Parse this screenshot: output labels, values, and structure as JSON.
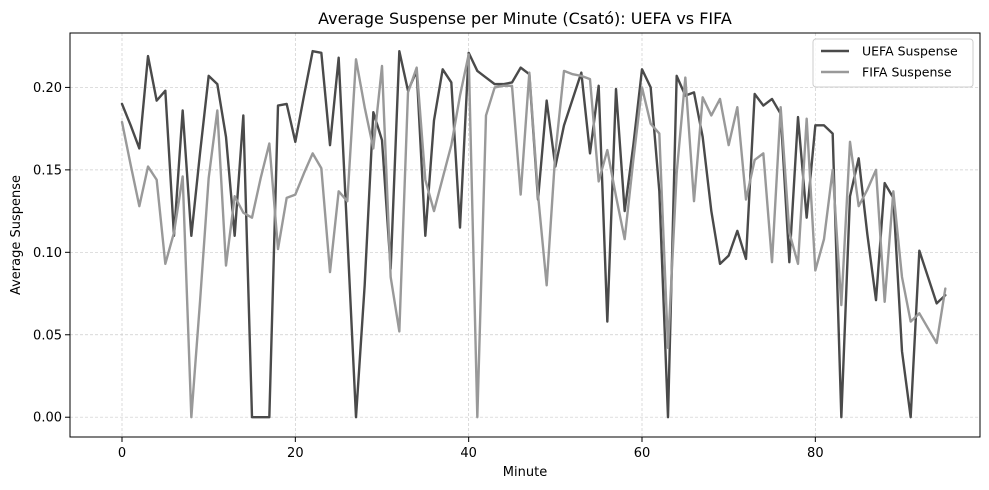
{
  "chart_data": {
    "type": "line",
    "title": "Average Suspense per Minute (Csató): UEFA vs FIFA",
    "xlabel": "Minute",
    "ylabel": "Average Suspense",
    "xlim": [
      -6,
      99
    ],
    "ylim": [
      -0.012,
      0.233
    ],
    "xticks": [
      0,
      20,
      40,
      60,
      80
    ],
    "yticks": [
      0.0,
      0.05,
      0.1,
      0.15,
      0.2
    ],
    "ytick_labels": [
      "0.00",
      "0.05",
      "0.10",
      "0.15",
      "0.20"
    ],
    "grid": true,
    "legend_position": "upper right",
    "x": [
      0,
      1,
      2,
      3,
      4,
      5,
      6,
      7,
      8,
      9,
      10,
      11,
      12,
      13,
      14,
      15,
      16,
      17,
      18,
      19,
      20,
      21,
      22,
      23,
      24,
      25,
      26,
      27,
      28,
      29,
      30,
      31,
      32,
      33,
      34,
      35,
      36,
      37,
      38,
      39,
      40,
      41,
      42,
      43,
      44,
      45,
      46,
      47,
      48,
      49,
      50,
      51,
      52,
      53,
      54,
      55,
      56,
      57,
      58,
      59,
      60,
      61,
      62,
      63,
      64,
      65,
      66,
      67,
      68,
      69,
      70,
      71,
      72,
      73,
      74,
      75,
      76,
      77,
      78,
      79,
      80,
      81,
      82,
      83,
      84,
      85,
      86,
      87,
      88,
      89,
      90,
      91,
      92,
      93,
      94,
      95
    ],
    "series": [
      {
        "name": "UEFA Suspense",
        "color": "#4a4a4a",
        "values": [
          0.19,
          0.177,
          0.163,
          0.219,
          0.192,
          0.198,
          0.11,
          0.186,
          0.11,
          0.16,
          0.207,
          0.202,
          0.17,
          0.11,
          0.183,
          0.0,
          0.0,
          0.0,
          0.189,
          0.19,
          0.167,
          0.195,
          0.222,
          0.221,
          0.165,
          0.218,
          0.11,
          0.0,
          0.08,
          0.185,
          0.168,
          0.09,
          0.222,
          0.198,
          0.21,
          0.11,
          0.18,
          0.211,
          0.203,
          0.115,
          0.221,
          0.21,
          0.206,
          0.202,
          0.202,
          0.203,
          0.212,
          0.208,
          0.132,
          0.192,
          0.152,
          0.177,
          0.193,
          0.209,
          0.16,
          0.201,
          0.058,
          0.199,
          0.125,
          0.165,
          0.211,
          0.2,
          0.137,
          0.0,
          0.207,
          0.195,
          0.197,
          0.17,
          0.125,
          0.093,
          0.098,
          0.113,
          0.096,
          0.196,
          0.189,
          0.193,
          0.184,
          0.094,
          0.182,
          0.121,
          0.177,
          0.177,
          0.172,
          0.0,
          0.134,
          0.157,
          0.111,
          0.071,
          0.142,
          0.133,
          0.04,
          0.0,
          0.101,
          0.085,
          0.069,
          0.074
        ]
      },
      {
        "name": "FIFA Suspense",
        "color": "#999999",
        "values": [
          0.179,
          0.153,
          0.128,
          0.152,
          0.144,
          0.093,
          0.112,
          0.146,
          0.0,
          0.07,
          0.145,
          0.186,
          0.092,
          0.134,
          0.124,
          0.121,
          0.145,
          0.166,
          0.102,
          0.133,
          0.135,
          0.148,
          0.16,
          0.151,
          0.088,
          0.137,
          0.131,
          0.217,
          0.188,
          0.163,
          0.213,
          0.085,
          0.052,
          0.197,
          0.212,
          0.144,
          0.125,
          0.145,
          0.165,
          0.195,
          0.22,
          0.0,
          0.183,
          0.2,
          0.201,
          0.201,
          0.135,
          0.209,
          0.135,
          0.08,
          0.16,
          0.21,
          0.208,
          0.207,
          0.205,
          0.143,
          0.162,
          0.134,
          0.108,
          0.156,
          0.2,
          0.178,
          0.172,
          0.042,
          0.148,
          0.206,
          0.131,
          0.194,
          0.183,
          0.193,
          0.165,
          0.188,
          0.132,
          0.156,
          0.16,
          0.094,
          0.188,
          0.112,
          0.093,
          0.181,
          0.089,
          0.108,
          0.15,
          0.068,
          0.167,
          0.128,
          0.138,
          0.15,
          0.07,
          0.137,
          0.085,
          0.058,
          0.063,
          0.054,
          0.045,
          0.078
        ]
      }
    ]
  }
}
